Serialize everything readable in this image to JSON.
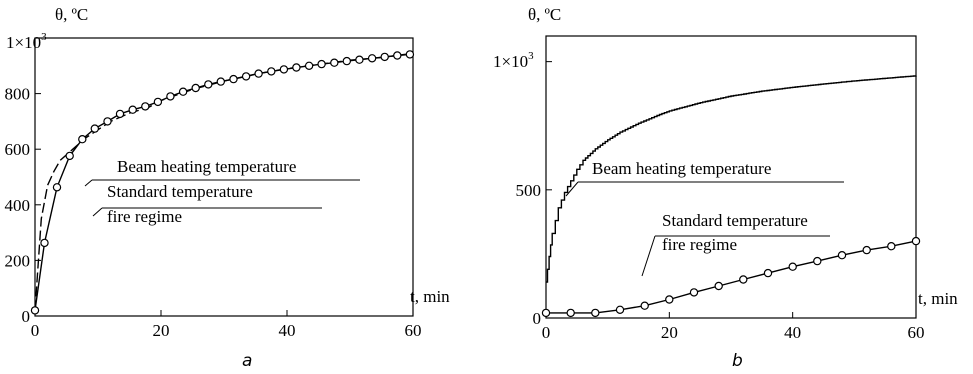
{
  "chart_data": [
    {
      "panel_label": "a",
      "type": "line",
      "xlabel": "t, min",
      "ylabel": "θ, ºC",
      "xlim": [
        0,
        60
      ],
      "ylim": [
        0,
        1000
      ],
      "x_ticks": [
        "0",
        "20",
        "40",
        "60"
      ],
      "y_ticks": [
        "0",
        "200",
        "400",
        "600",
        "800"
      ],
      "y_top_label": "1×10",
      "y_top_exp": "3",
      "grid": false,
      "series": [
        {
          "name": "Beam heating temperature",
          "style": "dashed",
          "x": [
            0,
            1,
            2,
            3,
            4,
            5,
            6,
            8,
            10,
            12,
            15,
            18,
            20,
            25,
            30,
            35,
            40,
            45,
            50,
            55,
            60
          ],
          "y": [
            20,
            350,
            470,
            520,
            560,
            580,
            600,
            640,
            670,
            700,
            730,
            750,
            775,
            815,
            845,
            870,
            890,
            905,
            920,
            930,
            945
          ]
        },
        {
          "name": "Standard temperature fire regime",
          "style": "solid-circles",
          "x": [
            0,
            1.5,
            3.5,
            5.5,
            7.5,
            9.5,
            11.5,
            13.5,
            15.5,
            17.5,
            19.5,
            21.5,
            23.5,
            25.5,
            27.5,
            29.5,
            31.5,
            33.5,
            35.5,
            37.5,
            39.5,
            41.5,
            43.5,
            45.5,
            47.5,
            49.5,
            51.5,
            53.5,
            55.5,
            57.5,
            59.5
          ],
          "y": [
            20,
            263,
            463,
            576,
            636,
            674,
            700,
            727,
            742,
            754,
            770,
            790,
            807,
            820,
            833,
            843,
            852,
            862,
            872,
            880,
            887,
            894,
            900,
            906,
            911,
            917,
            922,
            927,
            932,
            937,
            941
          ]
        }
      ],
      "annotations": [
        {
          "text": "Beam heating temperature"
        },
        {
          "text": "Standard temperature"
        },
        {
          "text": "fire regime"
        }
      ]
    },
    {
      "panel_label": "b",
      "type": "line",
      "xlabel": "t, min",
      "ylabel": "θ, ºC",
      "xlim": [
        0,
        60
      ],
      "ylim": [
        0,
        1100
      ],
      "x_ticks": [
        "0",
        "20",
        "40",
        "60"
      ],
      "y_ticks": [
        "0",
        "500"
      ],
      "y_top_label": "1×10",
      "y_top_exp": "3",
      "grid": false,
      "series": [
        {
          "name": "Beam heating temperature",
          "style": "stepped",
          "x": [
            0,
            0.5,
            1,
            2,
            3,
            4,
            5,
            6,
            8,
            10,
            12,
            15,
            18,
            20,
            25,
            30,
            35,
            40,
            45,
            50,
            55,
            60
          ],
          "y": [
            140,
            240,
            330,
            430,
            490,
            535,
            580,
            615,
            660,
            695,
            725,
            760,
            790,
            808,
            840,
            866,
            885,
            900,
            913,
            925,
            935,
            945
          ]
        },
        {
          "name": "Standard temperature fire regime",
          "style": "solid-circles",
          "x": [
            0,
            4,
            8,
            12,
            16,
            20,
            24,
            28,
            32,
            36,
            40,
            44,
            48,
            52,
            56,
            60
          ],
          "y": [
            20,
            20,
            20,
            32,
            48,
            72,
            100,
            125,
            150,
            175,
            200,
            222,
            245,
            265,
            280,
            300
          ]
        }
      ],
      "annotations": [
        {
          "text": "Beam heating temperature"
        },
        {
          "text": "Standard temperature"
        },
        {
          "text": "fire regime"
        }
      ]
    }
  ]
}
